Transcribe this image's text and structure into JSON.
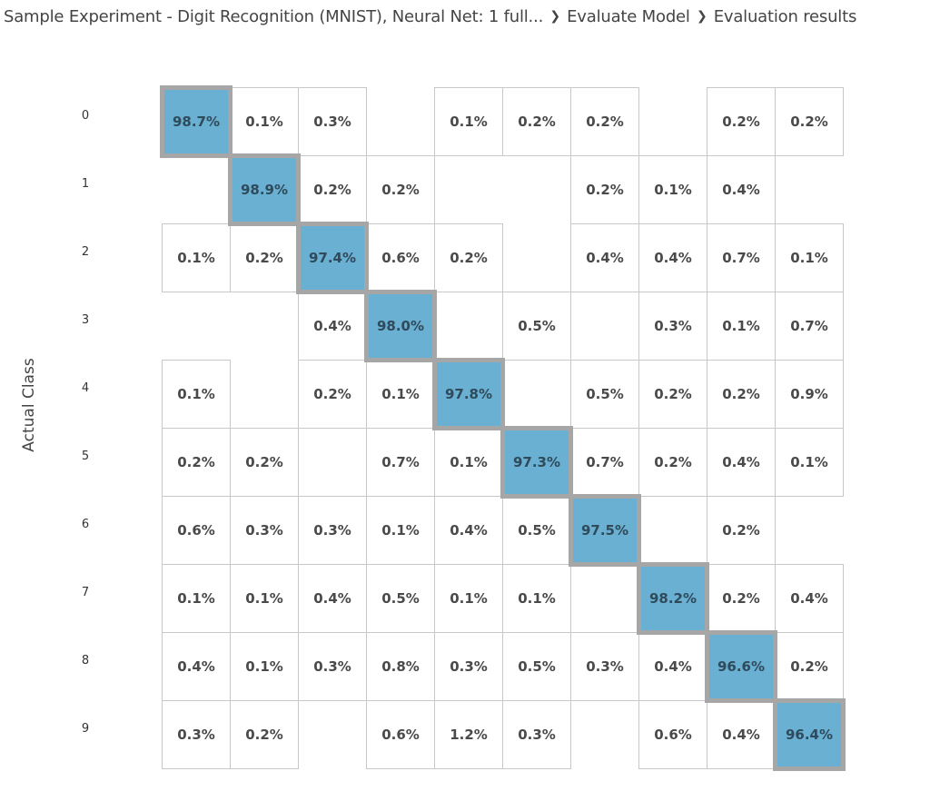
{
  "breadcrumb": {
    "items": [
      "Sample Experiment - Digit Recognition (MNIST), Neural Net: 1 full...",
      "Evaluate Model",
      "Evaluation results"
    ],
    "separator_icon": "chevron-right-icon"
  },
  "y_axis_label": "Actual Class",
  "chart_data": {
    "type": "heatmap",
    "title": "",
    "xlabel": "",
    "ylabel": "Actual Class",
    "row_labels": [
      "0",
      "1",
      "2",
      "3",
      "4",
      "5",
      "6",
      "7",
      "8",
      "9"
    ],
    "highlight": "diagonal",
    "colors": {
      "diagonal_fill": "#6ab0d3",
      "diagonal_border": "#a6a6a6",
      "cell_border": "#c8c8c8"
    },
    "values": [
      [
        "98.7%",
        "0.1%",
        "0.3%",
        "",
        "0.1%",
        "0.2%",
        "0.2%",
        "",
        "0.2%",
        "0.2%"
      ],
      [
        "",
        "98.9%",
        "0.2%",
        "0.2%",
        "",
        "",
        "0.2%",
        "0.1%",
        "0.4%",
        ""
      ],
      [
        "0.1%",
        "0.2%",
        "97.4%",
        "0.6%",
        "0.2%",
        "",
        "0.4%",
        "0.4%",
        "0.7%",
        "0.1%"
      ],
      [
        "",
        "",
        "0.4%",
        "98.0%",
        "",
        "0.5%",
        "",
        "0.3%",
        "0.1%",
        "0.7%"
      ],
      [
        "0.1%",
        "",
        "0.2%",
        "0.1%",
        "97.8%",
        "",
        "0.5%",
        "0.2%",
        "0.2%",
        "0.9%"
      ],
      [
        "0.2%",
        "0.2%",
        "",
        "0.7%",
        "0.1%",
        "97.3%",
        "0.7%",
        "0.2%",
        "0.4%",
        "0.1%"
      ],
      [
        "0.6%",
        "0.3%",
        "0.3%",
        "0.1%",
        "0.4%",
        "0.5%",
        "97.5%",
        "",
        "0.2%",
        ""
      ],
      [
        "0.1%",
        "0.1%",
        "0.4%",
        "0.5%",
        "0.1%",
        "0.1%",
        "",
        "98.2%",
        "0.2%",
        "0.4%"
      ],
      [
        "0.4%",
        "0.1%",
        "0.3%",
        "0.8%",
        "0.3%",
        "0.5%",
        "0.3%",
        "0.4%",
        "96.6%",
        "0.2%"
      ],
      [
        "0.3%",
        "0.2%",
        "",
        "0.6%",
        "1.2%",
        "0.3%",
        "",
        "0.6%",
        "0.4%",
        "96.4%"
      ]
    ]
  }
}
